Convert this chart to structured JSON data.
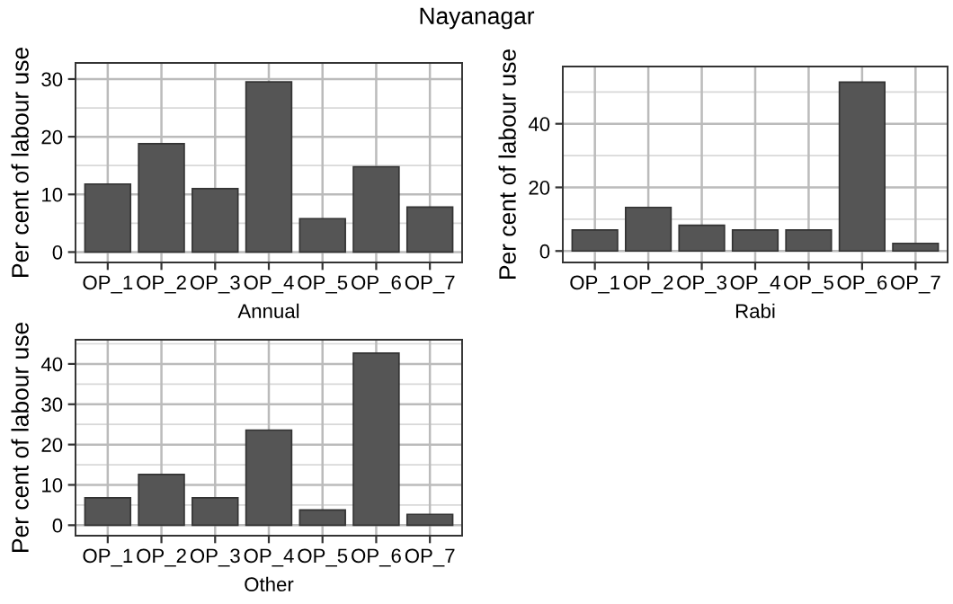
{
  "chart_data": [
    {
      "type": "bar",
      "title": "Nayanagar",
      "xlabel": "Annual",
      "ylabel": "Per cent of labour use",
      "categories": [
        "OP_1",
        "OP_2",
        "OP_3",
        "OP_4",
        "OP_5",
        "OP_6",
        "OP_7"
      ],
      "values": [
        11.8,
        18.8,
        11,
        29.5,
        5.8,
        14.8,
        7.8
      ],
      "color": "#555555",
      "ylim": [
        -1.8,
        32.8
      ],
      "yticks": [
        0,
        10,
        20,
        30
      ],
      "grid": true
    },
    {
      "type": "bar",
      "xlabel": "Rabi",
      "ylabel": "Per cent of labour use",
      "categories": [
        "OP_1",
        "OP_2",
        "OP_3",
        "OP_4",
        "OP_5",
        "OP_6",
        "OP_7"
      ],
      "values": [
        6.6,
        13.7,
        8.1,
        6.6,
        6.6,
        53.1,
        2.4
      ],
      "color": "#555555",
      "ylim": [
        -3.6,
        58
      ],
      "yticks": [
        0,
        20,
        40
      ],
      "grid": true
    },
    {
      "type": "bar",
      "xlabel": "Other",
      "ylabel": "Per cent of labour use",
      "categories": [
        "OP_1",
        "OP_2",
        "OP_3",
        "OP_4",
        "OP_5",
        "OP_6",
        "OP_7"
      ],
      "values": [
        6.8,
        12.6,
        6.8,
        23.6,
        3.8,
        42.7,
        2.7
      ],
      "color": "#555555",
      "ylim": [
        -2.6,
        46
      ],
      "yticks": [
        0,
        10,
        20,
        30,
        40
      ],
      "grid": true
    }
  ]
}
